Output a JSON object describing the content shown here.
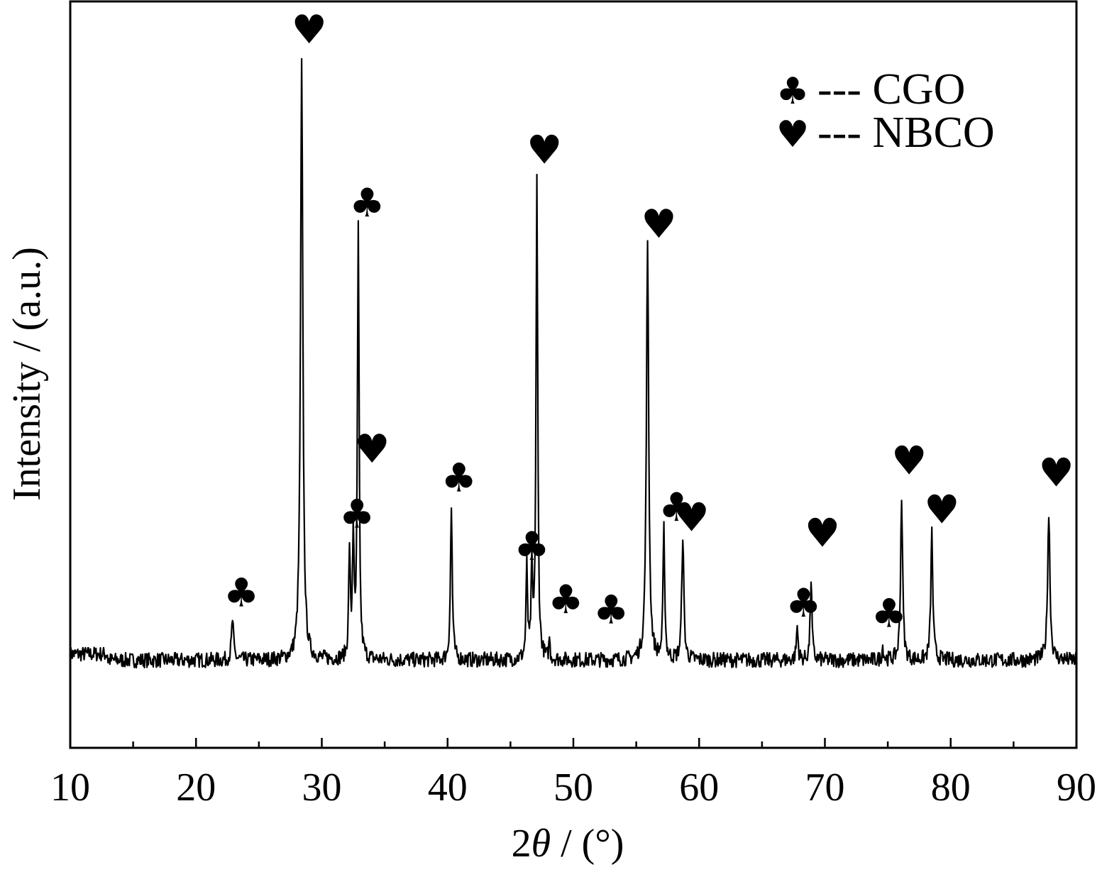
{
  "chart_data": {
    "type": "line",
    "xlabel_prefix": "2",
    "xlabel_symbol": "θ",
    "xlabel_suffix": " / (°)",
    "ylabel": "Intensity / (a.u.)",
    "xlim": [
      10,
      90
    ],
    "ylim": [
      0,
      100
    ],
    "x_ticks": [
      10,
      20,
      30,
      40,
      50,
      60,
      70,
      80,
      90
    ],
    "x_tick_labels": [
      "10",
      "20",
      "30",
      "40",
      "50",
      "60",
      "70",
      "80",
      "90"
    ],
    "x_minor_ticks": [
      15,
      25,
      35,
      45,
      55,
      65,
      75,
      85
    ],
    "grid": false,
    "legend_position": "top-right",
    "baseline": 12.6,
    "noise_amplitude": 1.1,
    "series": [
      {
        "peaks": [
          {
            "x": 22.9,
            "y": 18.5,
            "w": 0.12
          },
          {
            "x": 28.4,
            "y": 100,
            "w": 0.14
          },
          {
            "x": 32.2,
            "y": 28.5,
            "w": 0.09
          },
          {
            "x": 32.5,
            "y": 30.5,
            "w": 0.09
          },
          {
            "x": 32.9,
            "y": 75.5,
            "w": 0.1
          },
          {
            "x": 40.3,
            "y": 34.8,
            "w": 0.11
          },
          {
            "x": 46.3,
            "y": 26.0,
            "w": 0.09
          },
          {
            "x": 46.7,
            "y": 25.0,
            "w": 0.09
          },
          {
            "x": 47.1,
            "y": 82.5,
            "w": 0.1
          },
          {
            "x": 48.1,
            "y": 15.8,
            "w": 0.06
          },
          {
            "x": 55.9,
            "y": 73.0,
            "w": 0.14
          },
          {
            "x": 57.2,
            "y": 31.5,
            "w": 0.1
          },
          {
            "x": 58.7,
            "y": 30.8,
            "w": 0.12
          },
          {
            "x": 67.8,
            "y": 17.5,
            "w": 0.1
          },
          {
            "x": 68.9,
            "y": 24.5,
            "w": 0.1
          },
          {
            "x": 74.6,
            "y": 14.5,
            "w": 0.1
          },
          {
            "x": 76.1,
            "y": 36.5,
            "w": 0.12
          },
          {
            "x": 78.5,
            "y": 31.3,
            "w": 0.12
          },
          {
            "x": 87.8,
            "y": 34.0,
            "w": 0.14
          }
        ]
      }
    ],
    "legend": [
      {
        "symbol": "♣",
        "label": "--- CGO"
      },
      {
        "symbol": "♥",
        "label": "--- NBCO"
      }
    ],
    "annotations": [
      {
        "symbol": "♣",
        "x": 23.6,
        "y": 20.5
      },
      {
        "symbol": "♥",
        "x": 29.0,
        "y": 102.8
      },
      {
        "symbol": "♣",
        "x": 33.6,
        "y": 77.5
      },
      {
        "symbol": "♥",
        "x": 34.0,
        "y": 41.5
      },
      {
        "symbol": "♣",
        "x": 32.8,
        "y": 32.0
      },
      {
        "symbol": "♣",
        "x": 40.9,
        "y": 37.3
      },
      {
        "symbol": "♥",
        "x": 47.7,
        "y": 85.2
      },
      {
        "symbol": "♣",
        "x": 46.7,
        "y": 27.3
      },
      {
        "symbol": "♣",
        "x": 49.4,
        "y": 19.5
      },
      {
        "symbol": "♣",
        "x": 53.0,
        "y": 18.0
      },
      {
        "symbol": "♥",
        "x": 56.8,
        "y": 74.4
      },
      {
        "symbol": "♣",
        "x": 58.2,
        "y": 33.0
      },
      {
        "symbol": "♥",
        "x": 59.4,
        "y": 31.5
      },
      {
        "symbol": "♥",
        "x": 69.8,
        "y": 29.2
      },
      {
        "symbol": "♣",
        "x": 68.3,
        "y": 19.0
      },
      {
        "symbol": "♣",
        "x": 75.1,
        "y": 17.5
      },
      {
        "symbol": "♥",
        "x": 76.7,
        "y": 39.8
      },
      {
        "symbol": "♥",
        "x": 79.3,
        "y": 32.6
      },
      {
        "symbol": "♥",
        "x": 88.4,
        "y": 38.0
      }
    ]
  }
}
